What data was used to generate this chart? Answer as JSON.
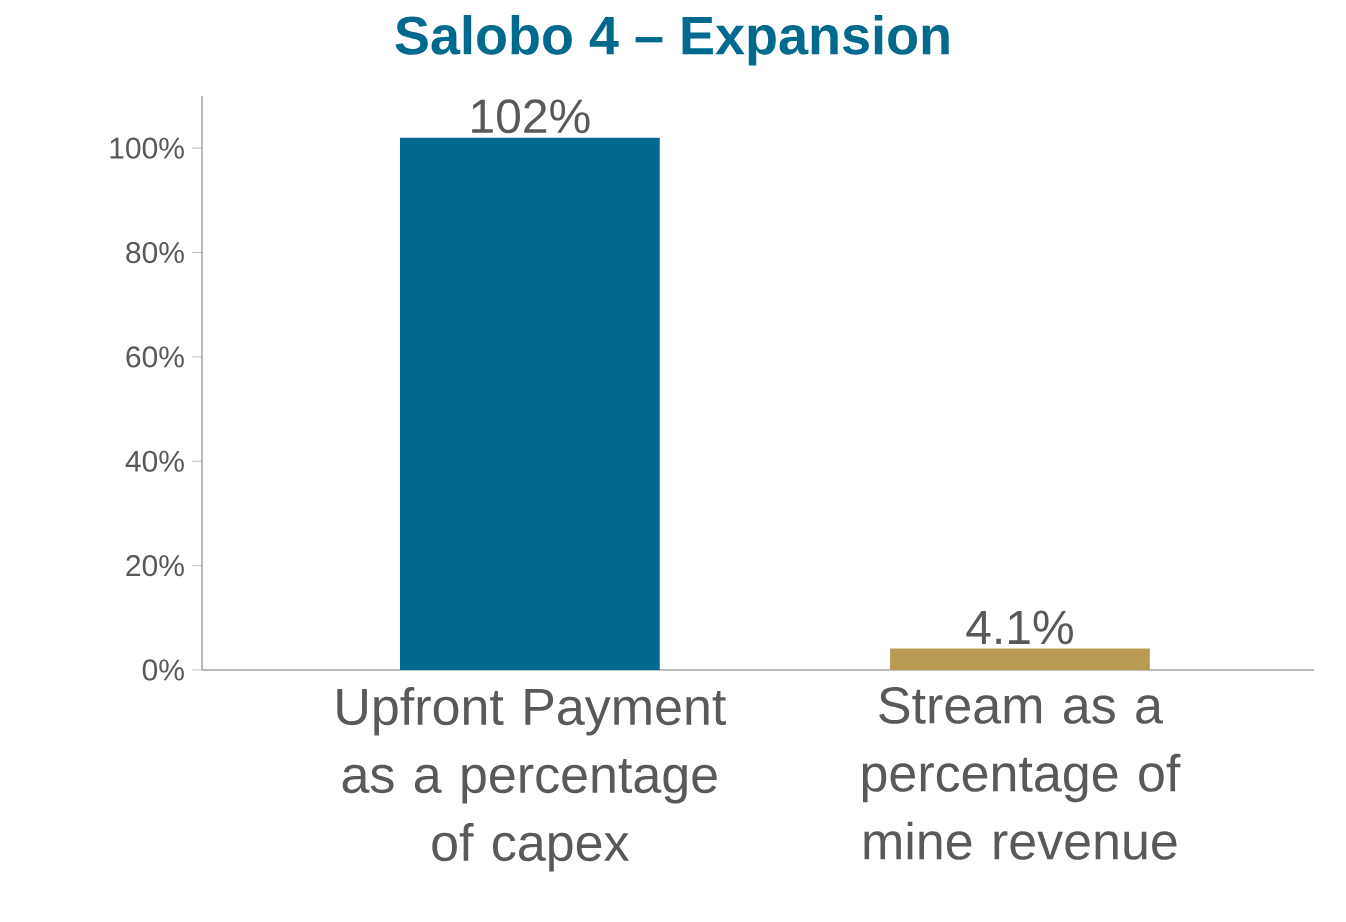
{
  "chart_data": {
    "type": "bar",
    "title": "Salobo 4 – Expansion",
    "categories": [
      "Upfront Payment as a percentage of capex",
      "Stream as a percentage of mine revenue"
    ],
    "values": [
      102,
      4.1
    ],
    "colors": [
      "#006a8e",
      "#b89a52"
    ],
    "value_labels": [
      "102%",
      "4.1%"
    ],
    "ylim": [
      0,
      110
    ],
    "yticks": [
      {
        "value": 0,
        "label": "0%"
      },
      {
        "value": 20,
        "label": "20%"
      },
      {
        "value": 40,
        "label": "40%"
      },
      {
        "value": 60,
        "label": "60%"
      },
      {
        "value": 80,
        "label": "80%"
      },
      {
        "value": 100,
        "label": "100%"
      }
    ],
    "grid": false
  }
}
